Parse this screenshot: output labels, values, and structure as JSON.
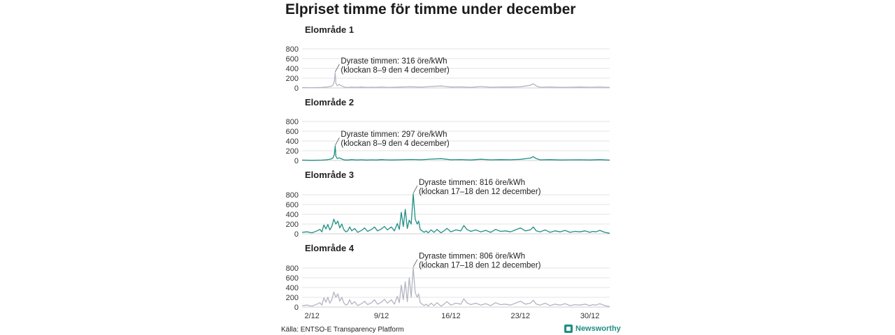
{
  "title": "Elpriset timme för timme under december",
  "source": "Källa: ENTSO-E Transparency Platform",
  "brand": "Newsworthy",
  "colors": {
    "grey_line": "#b3b5c2",
    "teal_line": "#1f8f84",
    "grid": "#e3e3e3",
    "text": "#222222"
  },
  "chart_data": [
    {
      "type": "line",
      "title": "Elområde 1",
      "ylim": [
        0,
        800
      ],
      "y_ticks": [
        0,
        200,
        400,
        600,
        800
      ],
      "x_ticks": [
        "2/12",
        "9/12",
        "16/12",
        "23/12",
        "30/12"
      ],
      "x_tick_days": [
        2,
        9,
        16,
        23,
        30
      ],
      "xlim_days": [
        1,
        32
      ],
      "grid": true,
      "color": "#b3b5c2",
      "series": [
        {
          "x_days": [
            1,
            2,
            3,
            3.5,
            3.9,
            4.1,
            4.25,
            4.34,
            4.4,
            4.55,
            4.75,
            5,
            5.3,
            5.6,
            6,
            6.5,
            7,
            7.5,
            8,
            8.5,
            9,
            9.5,
            10,
            11,
            12,
            13,
            14,
            15,
            16,
            17,
            18,
            19,
            20,
            21,
            22,
            23,
            24,
            24.3,
            24.6,
            25,
            26,
            27,
            28,
            29,
            30,
            31,
            32
          ],
          "y": [
            8,
            6,
            10,
            18,
            30,
            55,
            130,
            316,
            95,
            45,
            70,
            40,
            15,
            10,
            20,
            12,
            18,
            10,
            15,
            12,
            20,
            14,
            12,
            18,
            25,
            16,
            30,
            40,
            18,
            22,
            12,
            28,
            15,
            20,
            18,
            25,
            55,
            85,
            40,
            15,
            20,
            12,
            15,
            18,
            14,
            20,
            10
          ]
        }
      ],
      "annotation": {
        "line1": "Dyraste timmen: 316 öre/kWh",
        "line2": "(klockan 8–9 den 4 december)",
        "x_day": 4.34,
        "y": 316
      }
    },
    {
      "type": "line",
      "title": "Elområde 2",
      "ylim": [
        0,
        800
      ],
      "y_ticks": [
        0,
        200,
        400,
        600,
        800
      ],
      "x_ticks": [
        "2/12",
        "9/12",
        "16/12",
        "23/12",
        "30/12"
      ],
      "x_tick_days": [
        2,
        9,
        16,
        23,
        30
      ],
      "xlim_days": [
        1,
        32
      ],
      "grid": true,
      "color": "#1f8f84",
      "series": [
        {
          "x_days": [
            1,
            2,
            3,
            3.5,
            3.9,
            4.1,
            4.25,
            4.34,
            4.4,
            4.55,
            4.75,
            5,
            5.3,
            5.6,
            6,
            6.5,
            7,
            7.5,
            8,
            8.5,
            9,
            9.5,
            10,
            11,
            12,
            13,
            14,
            15,
            16,
            17,
            18,
            19,
            20,
            21,
            22,
            23,
            24,
            24.3,
            24.6,
            25,
            26,
            27,
            28,
            29,
            30,
            31,
            32
          ],
          "y": [
            8,
            5,
            9,
            15,
            28,
            50,
            120,
            297,
            90,
            40,
            55,
            30,
            12,
            10,
            18,
            12,
            16,
            10,
            14,
            12,
            18,
            14,
            12,
            16,
            22,
            15,
            28,
            38,
            16,
            20,
            12,
            26,
            14,
            18,
            16,
            24,
            50,
            80,
            38,
            14,
            18,
            12,
            14,
            16,
            12,
            18,
            8
          ]
        }
      ],
      "annotation": {
        "line1": "Dyraste timmen: 297 öre/kWh",
        "line2": "(klockan 8–9 den 4 december)",
        "x_day": 4.34,
        "y": 297
      }
    },
    {
      "type": "line",
      "title": "Elområde 3",
      "ylim": [
        0,
        800
      ],
      "y_ticks": [
        0,
        200,
        400,
        600,
        800
      ],
      "x_ticks": [
        "2/12",
        "9/12",
        "16/12",
        "23/12",
        "30/12"
      ],
      "x_tick_days": [
        2,
        9,
        16,
        23,
        30
      ],
      "xlim_days": [
        1,
        32
      ],
      "grid": true,
      "color": "#1f8f84",
      "series": [
        {
          "x_days": [
            1,
            1.5,
            2,
            2.5,
            2.8,
            3,
            3.2,
            3.4,
            3.6,
            3.8,
            4,
            4.2,
            4.4,
            4.6,
            4.8,
            5,
            5.2,
            5.4,
            5.6,
            5.8,
            6,
            6.3,
            6.6,
            7,
            7.3,
            7.6,
            8,
            8.3,
            8.6,
            9,
            9.3,
            9.6,
            10,
            10.3,
            10.6,
            10.8,
            11,
            11.2,
            11.4,
            11.6,
            11.8,
            12,
            12.2,
            12.4,
            12.6,
            12.75,
            12.9,
            13.1,
            13.3,
            13.5,
            13.7,
            14,
            14.3,
            14.6,
            15,
            15.3,
            15.6,
            16,
            16.5,
            17,
            17.3,
            17.6,
            18,
            18.5,
            19,
            19.5,
            20,
            20.5,
            21,
            21.5,
            22,
            22.5,
            23,
            23.5,
            24,
            24.3,
            24.6,
            25,
            25.5,
            26,
            26.5,
            27,
            27.5,
            28,
            28.5,
            29,
            29.5,
            30,
            30.3,
            30.6,
            31,
            31.5,
            32
          ],
          "y": [
            30,
            40,
            20,
            60,
            90,
            40,
            180,
            100,
            190,
            80,
            150,
            300,
            200,
            260,
            120,
            200,
            90,
            40,
            60,
            140,
            60,
            110,
            30,
            70,
            120,
            50,
            90,
            140,
            60,
            100,
            150,
            80,
            140,
            60,
            210,
            90,
            440,
            150,
            500,
            110,
            280,
            200,
            816,
            300,
            200,
            260,
            90,
            60,
            30,
            60,
            20,
            80,
            30,
            90,
            20,
            60,
            110,
            40,
            80,
            60,
            170,
            90,
            50,
            80,
            40,
            70,
            30,
            90,
            50,
            60,
            40,
            80,
            120,
            60,
            80,
            140,
            60,
            40,
            80,
            30,
            60,
            40,
            70,
            30,
            50,
            40,
            60,
            30,
            50,
            40,
            70,
            30,
            10
          ]
        }
      ],
      "annotation": {
        "line1": "Dyraste timmen: 816 öre/kWh",
        "line2": "(klockan 17–18 den 12 december)",
        "x_day": 12.2,
        "y": 816
      }
    },
    {
      "type": "line",
      "title": "Elområde 4",
      "ylim": [
        0,
        800
      ],
      "y_ticks": [
        0,
        200,
        400,
        600,
        800
      ],
      "x_ticks": [
        "2/12",
        "9/12",
        "16/12",
        "23/12",
        "30/12"
      ],
      "x_tick_days": [
        2,
        9,
        16,
        23,
        30
      ],
      "xlim_days": [
        1,
        32
      ],
      "grid": true,
      "color": "#b3b5c2",
      "series": [
        {
          "x_days": [
            1,
            1.5,
            2,
            2.5,
            2.8,
            3,
            3.2,
            3.4,
            3.6,
            3.8,
            4,
            4.2,
            4.4,
            4.6,
            4.8,
            5,
            5.2,
            5.4,
            5.6,
            5.8,
            6,
            6.3,
            6.6,
            7,
            7.3,
            7.6,
            8,
            8.3,
            8.6,
            9,
            9.3,
            9.6,
            10,
            10.3,
            10.6,
            10.8,
            11,
            11.2,
            11.4,
            11.6,
            11.8,
            12,
            12.2,
            12.4,
            12.6,
            12.75,
            12.9,
            13.1,
            13.3,
            13.5,
            13.7,
            14,
            14.3,
            14.6,
            15,
            15.3,
            15.6,
            16,
            16.5,
            17,
            17.3,
            17.6,
            18,
            18.5,
            19,
            19.5,
            20,
            20.5,
            21,
            21.5,
            22,
            22.5,
            23,
            23.5,
            24,
            24.3,
            24.6,
            25,
            25.5,
            26,
            26.5,
            27,
            27.5,
            28,
            28.5,
            29,
            29.5,
            30,
            30.3,
            30.6,
            31,
            31.5,
            32
          ],
          "y": [
            30,
            40,
            20,
            60,
            90,
            40,
            190,
            100,
            200,
            80,
            150,
            310,
            200,
            270,
            120,
            200,
            90,
            40,
            60,
            150,
            60,
            110,
            30,
            70,
            120,
            50,
            90,
            150,
            60,
            100,
            160,
            80,
            150,
            60,
            220,
            90,
            450,
            150,
            520,
            110,
            600,
            200,
            806,
            300,
            200,
            270,
            90,
            60,
            30,
            60,
            20,
            80,
            30,
            90,
            20,
            60,
            110,
            40,
            80,
            60,
            170,
            90,
            50,
            80,
            40,
            70,
            30,
            90,
            50,
            60,
            40,
            80,
            120,
            60,
            80,
            140,
            60,
            40,
            80,
            30,
            60,
            40,
            70,
            30,
            50,
            40,
            60,
            30,
            50,
            40,
            70,
            30,
            10
          ]
        }
      ],
      "annotation": {
        "line1": "Dyraste timmen: 806 öre/kWh",
        "line2": "(klockan 17–18 den 12 december)",
        "x_day": 12.2,
        "y": 806
      }
    }
  ]
}
